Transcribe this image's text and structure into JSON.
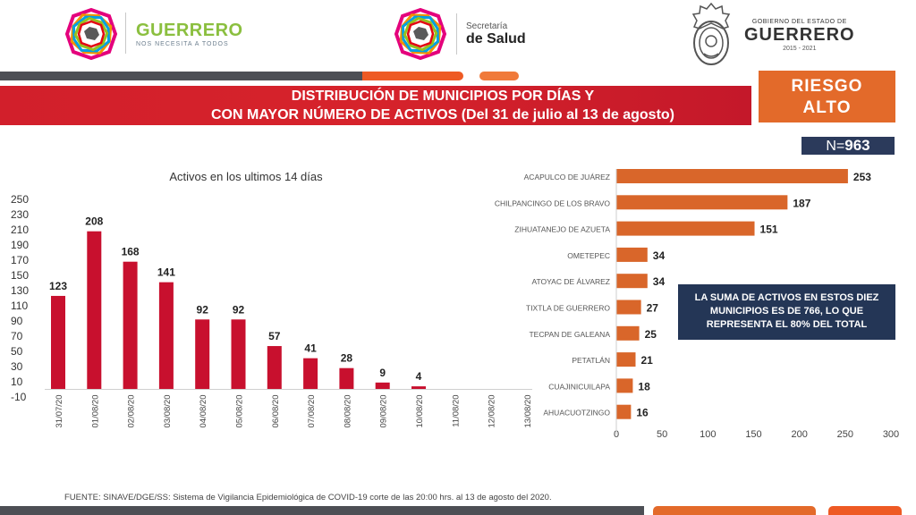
{
  "header": {
    "guerrero_name": "GUERRERO",
    "guerrero_slogan": "NOS NECESITA A TODOS",
    "salud_line1": "Secretaría",
    "salud_line2": "de Salud",
    "gobierno_line1": "GOBIERNO DEL ESTADO DE",
    "gobierno_line2": "GUERRERO",
    "gobierno_line3": "2015 - 2021"
  },
  "banner": {
    "line1": "DISTRIBUCIÓN DE MUNICIPIOS POR DÍAS Y",
    "line2": "CON MAYOR NÚMERO DE ACTIVOS (Del 31 de julio al 13 de agosto)"
  },
  "risk": {
    "line1": "RIESGO",
    "line2": "ALTO"
  },
  "n_box": {
    "prefix": "N=",
    "value": "963"
  },
  "summary": {
    "line1": "LA SUMA DE ACTIVOS EN ESTOS DIEZ",
    "line2": "MUNICIPIOS ES DE 766, LO QUE",
    "line3": "REPRESENTA EL 80% DEL TOTAL"
  },
  "source": "FUENTE: SINAVE/DGE/SS: Sistema de Vigilancia Epidemiológica de COVID-19 corte de las 20:00 hrs. al 13 de agosto del 2020.",
  "colors": {
    "bar_red": "#c8102e",
    "bar_orange": "#d9662a",
    "navy": "#243656",
    "orange": "#e36a2a"
  },
  "chart_data": [
    {
      "type": "bar",
      "title": "Activos en los ultimos 14 días",
      "categories": [
        "31/07/20",
        "01/08/20",
        "02/08/20",
        "03/08/20",
        "04/08/20",
        "05/08/20",
        "06/08/20",
        "07/08/20",
        "08/08/20",
        "09/08/20",
        "10/08/20",
        "11/08/20",
        "12/08/20",
        "13/08/20"
      ],
      "values": [
        123,
        208,
        168,
        141,
        92,
        92,
        57,
        41,
        28,
        9,
        4,
        null,
        null,
        null
      ],
      "value_labels": [
        "123",
        "208",
        "168",
        "141",
        "92",
        "92",
        "57",
        "41",
        "28",
        "9",
        "4",
        "",
        "",
        ""
      ],
      "ylim": [
        -10,
        250
      ],
      "yticks": [
        "250",
        "230",
        "210",
        "190",
        "170",
        "150",
        "130",
        "110",
        "90",
        "70",
        "50",
        "30",
        "10",
        "-10"
      ],
      "ytick_values": [
        250,
        230,
        210,
        190,
        170,
        150,
        130,
        110,
        90,
        70,
        50,
        30,
        10,
        -10
      ],
      "grid": false,
      "legend": "none"
    },
    {
      "type": "bar",
      "orientation": "horizontal",
      "categories": [
        "ACAPULCO DE JUÁREZ",
        "CHILPANCINGO DE LOS BRAVO",
        "ZIHUATANEJO DE AZUETA",
        "OMETEPEC",
        "ATOYAC DE ÁLVAREZ",
        "TIXTLA DE GUERRERO",
        "TECPAN DE GALEANA",
        "PETATLÁN",
        "CUAJINICUILAPA",
        "AHUACUOTZINGO"
      ],
      "values": [
        253,
        187,
        151,
        34,
        34,
        27,
        25,
        21,
        18,
        16
      ],
      "value_labels": [
        "253",
        "187",
        "151",
        "34",
        "34",
        "27",
        "25",
        "21",
        "18",
        "16"
      ],
      "xlim": [
        0,
        300
      ],
      "xticks": [
        "0",
        "50",
        "100",
        "150",
        "200",
        "250",
        "300"
      ],
      "xtick_values": [
        0,
        50,
        100,
        150,
        200,
        250,
        300
      ],
      "grid": false,
      "legend": "none"
    }
  ]
}
